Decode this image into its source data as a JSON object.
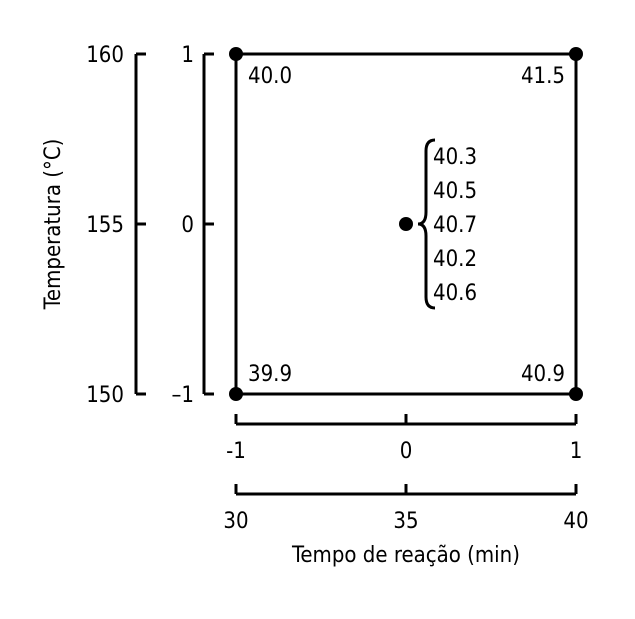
{
  "design": {
    "x_axis": {
      "title": "Tempo de reação (min)",
      "coded_ticks": [
        "-1",
        "0",
        "1"
      ],
      "real_ticks": [
        "30",
        "35",
        "40"
      ]
    },
    "y_axis": {
      "title": "Temperatura (°C)",
      "coded_ticks": [
        "1",
        "0",
        "–1"
      ],
      "real_ticks": [
        "160",
        "155",
        "150"
      ]
    },
    "corners": {
      "top_left": "40.0",
      "top_right": "41.5",
      "bottom_left": "39.9",
      "bottom_right": "40.9"
    },
    "center_points": [
      "40.3",
      "40.5",
      "40.7",
      "40.2",
      "40.6"
    ]
  }
}
